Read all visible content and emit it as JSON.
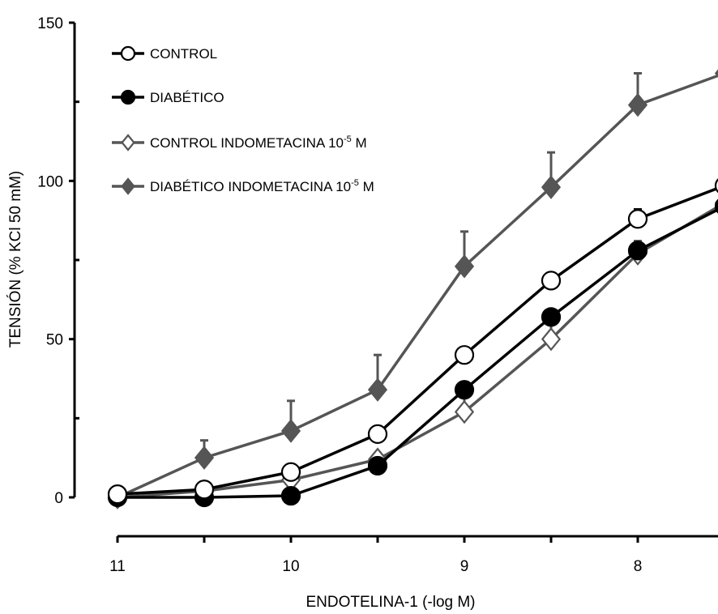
{
  "chart_data": {
    "type": "line",
    "xlabel": "ENDOTELINA-1 (-log M)",
    "ylabel": "TENSIÓN (% KCl 50 mM)",
    "xlim": [
      11,
      7.5
    ],
    "ylim": [
      0,
      150
    ],
    "x_ticks": [
      11,
      10.5,
      10,
      9.5,
      9,
      8.5,
      8,
      7.5
    ],
    "x_tick_labels": [
      "11",
      "10",
      "9",
      "8"
    ],
    "x_tick_label_values": [
      11,
      10,
      9,
      8
    ],
    "y_ticks": [
      0,
      50,
      100,
      150
    ],
    "y_tick_labels": [
      "0",
      "50",
      "100",
      "150"
    ],
    "grid": false,
    "legend_position": "top-left",
    "x": [
      11,
      10.5,
      10,
      9.5,
      9,
      8.5,
      8,
      7.5
    ],
    "series": [
      {
        "name": "CONTROL",
        "marker": "circle-open",
        "color": "#000000",
        "values": [
          1,
          2.5,
          8,
          20,
          45,
          68.5,
          88,
          98.5
        ],
        "errors": [
          0,
          0,
          0,
          0,
          0,
          0,
          3,
          0
        ]
      },
      {
        "name": "DIABÉTICO",
        "marker": "circle-filled",
        "color": "#000000",
        "values": [
          0,
          0,
          0.5,
          10,
          34,
          57,
          78,
          92
        ],
        "errors": [
          0,
          0,
          0,
          0,
          0,
          0,
          0,
          0
        ]
      },
      {
        "name": "CONTROL INDOMETACINA",
        "name_sup": "-5",
        "name_suffix": "M",
        "marker": "diamond-open",
        "color": "#555555",
        "values": [
          0,
          2,
          5.5,
          12,
          27,
          50,
          77,
          93
        ],
        "errors": [
          0,
          0,
          0,
          0,
          5.5,
          6.5,
          4,
          0
        ]
      },
      {
        "name": "DIABÉTICO INDOMETACINA",
        "name_sup": "-5",
        "name_suffix": "M",
        "marker": "diamond-filled",
        "color": "#555555",
        "values": [
          0,
          12.5,
          21,
          34,
          73,
          98,
          124,
          134
        ],
        "errors": [
          0,
          5.5,
          9.5,
          11,
          11,
          11,
          10,
          0
        ]
      }
    ]
  }
}
